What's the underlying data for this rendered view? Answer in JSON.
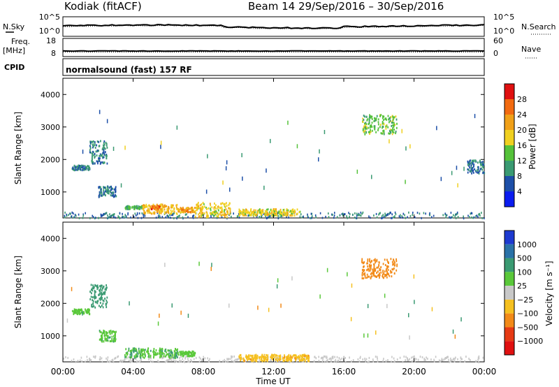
{
  "header": {
    "station": "Kodiak  (fitACF)",
    "beam_and_dates": "Beam 14  29/Sep/2016 – 30/Sep/2016",
    "mode": "normalsound (fast) 157 RF"
  },
  "strips": {
    "nsky": {
      "left_label": "N.Sky",
      "left_top_tick": "10^5",
      "left_bottom_tick": "10^0",
      "right_label": "N.Search",
      "right_top_tick": "10^5",
      "right_bottom_tick": "10^0"
    },
    "freq": {
      "left_label_line1": "Freq.",
      "left_label_line2": "[MHz]",
      "left_top_tick": "18",
      "left_bottom_tick": "8",
      "right_label": "Nave",
      "right_top_tick": "60",
      "right_bottom_tick": "0"
    },
    "cpid_label": "CPID"
  },
  "colors": {
    "power_scale": [
      "#0a1cf0",
      "#1d4fa8",
      "#3a9a72",
      "#55c23a",
      "#f0d020",
      "#f0a018",
      "#f26a10",
      "#e01010"
    ],
    "velocity_scale": [
      "#1d3ad0",
      "#2a72a8",
      "#3a9a72",
      "#5ac83a",
      "#c8c8c8",
      "#f5c020",
      "#f28a18",
      "#e63a14",
      "#e01010"
    ]
  },
  "chart_data": [
    {
      "type": "heatmap",
      "name": "power",
      "ylabel": "Slant Range [km]",
      "xlabel": "",
      "ylim": [
        200,
        4500
      ],
      "yticks": [
        1000,
        2000,
        3000,
        4000
      ],
      "colorbar": {
        "label": "Power [dB]",
        "ticks": [
          "4",
          "8",
          "12",
          "16",
          "20",
          "24",
          "28"
        ],
        "range": [
          0,
          32
        ]
      },
      "echo_regions": [
        {
          "t0": 0.5,
          "t1": 1.5,
          "r0": 1700,
          "r1": 1850,
          "value": 8
        },
        {
          "t0": 1.5,
          "t1": 2.5,
          "r0": 1900,
          "r1": 2600,
          "value": 9
        },
        {
          "t0": 2.0,
          "t1": 3.0,
          "r0": 850,
          "r1": 1200,
          "value": 8
        },
        {
          "t0": 3.5,
          "t1": 4.5,
          "r0": 500,
          "r1": 600,
          "value": 12
        },
        {
          "t0": 4.5,
          "t1": 6.5,
          "r0": 350,
          "r1": 650,
          "value": 20
        },
        {
          "t0": 5.0,
          "t1": 5.5,
          "r0": 500,
          "r1": 600,
          "value": 26
        },
        {
          "t0": 6.5,
          "t1": 7.5,
          "r0": 400,
          "r1": 550,
          "value": 22
        },
        {
          "t0": 7.5,
          "t1": 9.5,
          "r0": 250,
          "r1": 700,
          "value": 18
        },
        {
          "t0": 10.0,
          "t1": 13.5,
          "r0": 300,
          "r1": 500,
          "value": 18
        },
        {
          "t0": 17.0,
          "t1": 19.0,
          "r0": 2800,
          "r1": 3400,
          "value": 14
        },
        {
          "t0": 23.0,
          "t1": 24.0,
          "r0": 1600,
          "r1": 2000,
          "value": 8
        }
      ]
    },
    {
      "type": "heatmap",
      "name": "velocity",
      "ylabel": "Slant Range [km]",
      "xlabel": "Time UT",
      "ylim": [
        200,
        4500
      ],
      "yticks": [
        1000,
        2000,
        3000,
        4000
      ],
      "colorbar": {
        "label": "Velocity [m s⁻¹]",
        "ticks": [
          "1000",
          "500",
          "100",
          "25",
          "−25",
          "−100",
          "−500",
          "−1000"
        ],
        "range": [
          -1000,
          1000
        ]
      },
      "echo_regions": [
        {
          "t0": 0.5,
          "t1": 1.5,
          "r0": 1700,
          "r1": 1850,
          "value": 50
        },
        {
          "t0": 1.5,
          "t1": 2.5,
          "r0": 1900,
          "r1": 2600,
          "value": 300
        },
        {
          "t0": 2.0,
          "t1": 3.0,
          "r0": 850,
          "r1": 1200,
          "value": 80
        },
        {
          "t0": 3.5,
          "t1": 6.5,
          "r0": 350,
          "r1": 650,
          "value": 90
        },
        {
          "t0": 6.5,
          "t1": 7.5,
          "r0": 400,
          "r1": 550,
          "value": 60
        },
        {
          "t0": 10.0,
          "t1": 14.0,
          "r0": 250,
          "r1": 450,
          "value": -80
        },
        {
          "t0": 17.0,
          "t1": 19.0,
          "r0": 2800,
          "r1": 3400,
          "value": -300
        }
      ]
    }
  ],
  "x_axis": {
    "label": "Time UT",
    "ticks": [
      "00:00",
      "04:00",
      "08:00",
      "12:00",
      "16:00",
      "20:00",
      "00:00"
    ],
    "range_hours": [
      0,
      24
    ]
  }
}
